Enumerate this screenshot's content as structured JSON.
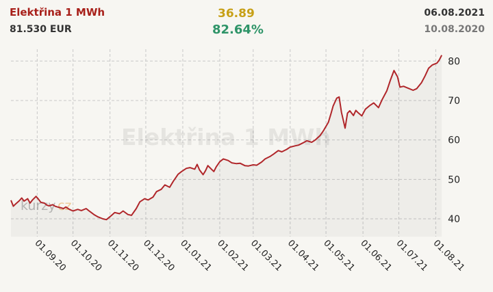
{
  "header": {
    "title": "Elektřina 1 MWh",
    "price": "81.530 EUR",
    "change": "36.89",
    "change_pct": "82.64%",
    "date_to": "06.08.2021",
    "date_from": "10.08.2020"
  },
  "watermark": {
    "title": "Elektřina 1 MWh",
    "logo_a": "kurzy",
    "logo_b": "cz"
  },
  "colors": {
    "title": "#a8201a",
    "line": "#b0262a",
    "change": "#c7a017",
    "pct": "#2e9468",
    "grid": "#c8c8c8"
  },
  "chart_data": {
    "type": "line",
    "x_type": "date",
    "ylim": [
      35.5,
      83
    ],
    "yticks": [
      40,
      50,
      60,
      70,
      80
    ],
    "xticks": [
      "01.09.20",
      "01.10.20",
      "01.11.20",
      "01.12.20",
      "01.01.21",
      "01.02.21",
      "01.03.21",
      "01.04.21",
      "01.05.21",
      "01.06.21",
      "01.07.21",
      "01.08.21"
    ],
    "grid": "dashed",
    "series": [
      {
        "points": [
          [
            "2020-08-10",
            44.7
          ],
          [
            "2020-08-12",
            43.2
          ],
          [
            "2020-08-14",
            43.8
          ],
          [
            "2020-08-17",
            44.6
          ],
          [
            "2020-08-19",
            45.3
          ],
          [
            "2020-08-21",
            44.5
          ],
          [
            "2020-08-24",
            45.1
          ],
          [
            "2020-08-26",
            44.0
          ],
          [
            "2020-08-28",
            44.8
          ],
          [
            "2020-08-31",
            45.7
          ],
          [
            "2020-09-02",
            45.0
          ],
          [
            "2020-09-04",
            44.2
          ],
          [
            "2020-09-07",
            44.0
          ],
          [
            "2020-09-09",
            43.5
          ],
          [
            "2020-09-11",
            43.3
          ],
          [
            "2020-09-14",
            43.6
          ],
          [
            "2020-09-16",
            43.2
          ],
          [
            "2020-09-18",
            43.0
          ],
          [
            "2020-09-21",
            42.8
          ],
          [
            "2020-09-23",
            42.6
          ],
          [
            "2020-09-25",
            43.0
          ],
          [
            "2020-09-28",
            42.4
          ],
          [
            "2020-10-01",
            42.0
          ],
          [
            "2020-10-05",
            42.4
          ],
          [
            "2020-10-08",
            42.1
          ],
          [
            "2020-10-12",
            42.6
          ],
          [
            "2020-10-15",
            41.9
          ],
          [
            "2020-10-19",
            41.0
          ],
          [
            "2020-10-22",
            40.5
          ],
          [
            "2020-10-26",
            40.0
          ],
          [
            "2020-10-29",
            39.8
          ],
          [
            "2020-11-02",
            40.8
          ],
          [
            "2020-11-05",
            41.6
          ],
          [
            "2020-11-09",
            41.3
          ],
          [
            "2020-11-12",
            42.0
          ],
          [
            "2020-11-16",
            41.1
          ],
          [
            "2020-11-19",
            40.9
          ],
          [
            "2020-11-23",
            42.6
          ],
          [
            "2020-11-26",
            44.3
          ],
          [
            "2020-11-30",
            45.1
          ],
          [
            "2020-12-03",
            44.8
          ],
          [
            "2020-12-07",
            45.5
          ],
          [
            "2020-12-10",
            46.9
          ],
          [
            "2020-12-14",
            47.5
          ],
          [
            "2020-12-17",
            48.6
          ],
          [
            "2020-12-21",
            48.0
          ],
          [
            "2020-12-24",
            49.5
          ],
          [
            "2020-12-28",
            51.3
          ],
          [
            "2020-12-31",
            52.0
          ],
          [
            "2021-01-04",
            52.8
          ],
          [
            "2021-01-07",
            53.0
          ],
          [
            "2021-01-11",
            52.6
          ],
          [
            "2021-01-13",
            53.8
          ],
          [
            "2021-01-15",
            52.4
          ],
          [
            "2021-01-18",
            51.2
          ],
          [
            "2021-01-20",
            52.2
          ],
          [
            "2021-01-22",
            53.5
          ],
          [
            "2021-01-25",
            52.6
          ],
          [
            "2021-01-27",
            52.0
          ],
          [
            "2021-01-29",
            53.2
          ],
          [
            "2021-02-01",
            54.5
          ],
          [
            "2021-02-04",
            55.2
          ],
          [
            "2021-02-08",
            54.8
          ],
          [
            "2021-02-11",
            54.2
          ],
          [
            "2021-02-15",
            54.0
          ],
          [
            "2021-02-18",
            54.1
          ],
          [
            "2021-02-22",
            53.5
          ],
          [
            "2021-02-25",
            53.4
          ],
          [
            "2021-03-01",
            53.7
          ],
          [
            "2021-03-04",
            53.6
          ],
          [
            "2021-03-08",
            54.4
          ],
          [
            "2021-03-11",
            55.2
          ],
          [
            "2021-03-15",
            55.8
          ],
          [
            "2021-03-18",
            56.4
          ],
          [
            "2021-03-22",
            57.3
          ],
          [
            "2021-03-25",
            57.0
          ],
          [
            "2021-03-29",
            57.6
          ],
          [
            "2021-04-01",
            58.2
          ],
          [
            "2021-04-05",
            58.5
          ],
          [
            "2021-04-08",
            58.7
          ],
          [
            "2021-04-12",
            59.3
          ],
          [
            "2021-04-15",
            59.8
          ],
          [
            "2021-04-19",
            59.4
          ],
          [
            "2021-04-22",
            60.0
          ],
          [
            "2021-04-26",
            61.1
          ],
          [
            "2021-04-29",
            62.4
          ],
          [
            "2021-05-03",
            64.5
          ],
          [
            "2021-05-05",
            66.5
          ],
          [
            "2021-05-07",
            68.6
          ],
          [
            "2021-05-10",
            70.6
          ],
          [
            "2021-05-12",
            70.9
          ],
          [
            "2021-05-14",
            67.0
          ],
          [
            "2021-05-17",
            63.0
          ],
          [
            "2021-05-19",
            66.8
          ],
          [
            "2021-05-21",
            67.4
          ],
          [
            "2021-05-24",
            66.2
          ],
          [
            "2021-05-26",
            67.5
          ],
          [
            "2021-05-28",
            66.9
          ],
          [
            "2021-05-31",
            66.1
          ],
          [
            "2021-06-03",
            67.8
          ],
          [
            "2021-06-07",
            68.8
          ],
          [
            "2021-06-10",
            69.4
          ],
          [
            "2021-06-14",
            68.2
          ],
          [
            "2021-06-17",
            70.2
          ],
          [
            "2021-06-21",
            72.5
          ],
          [
            "2021-06-24",
            75.2
          ],
          [
            "2021-06-27",
            77.6
          ],
          [
            "2021-06-30",
            76.0
          ],
          [
            "2021-07-02",
            73.4
          ],
          [
            "2021-07-05",
            73.6
          ],
          [
            "2021-07-09",
            73.1
          ],
          [
            "2021-07-13",
            72.6
          ],
          [
            "2021-07-16",
            73.0
          ],
          [
            "2021-07-20",
            74.5
          ],
          [
            "2021-07-23",
            76.2
          ],
          [
            "2021-07-26",
            78.2
          ],
          [
            "2021-07-29",
            79.0
          ],
          [
            "2021-08-02",
            79.5
          ],
          [
            "2021-08-04",
            80.3
          ],
          [
            "2021-08-06",
            81.5
          ]
        ]
      }
    ]
  }
}
